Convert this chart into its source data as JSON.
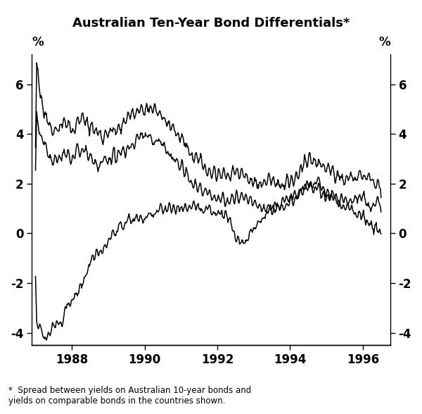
{
  "title": "Australian Ten-Year Bond Differentials*",
  "footnote": "*  Spread between yields on Australian 10-year bonds and\nyields on comparable bonds in the countries shown.",
  "ylabel_left": "%",
  "ylabel_right": "%",
  "ylim": [
    -4.5,
    7.2
  ],
  "yticks": [
    -4,
    -2,
    0,
    2,
    4,
    6
  ],
  "xlim_start": 1986.9,
  "xlim_end": 1996.75,
  "xticks": [
    1988,
    1990,
    1992,
    1994,
    1996
  ],
  "line_color": "#000000",
  "line_width": 1.1,
  "figsize": [
    6.0,
    5.88
  ],
  "dpi": 100
}
